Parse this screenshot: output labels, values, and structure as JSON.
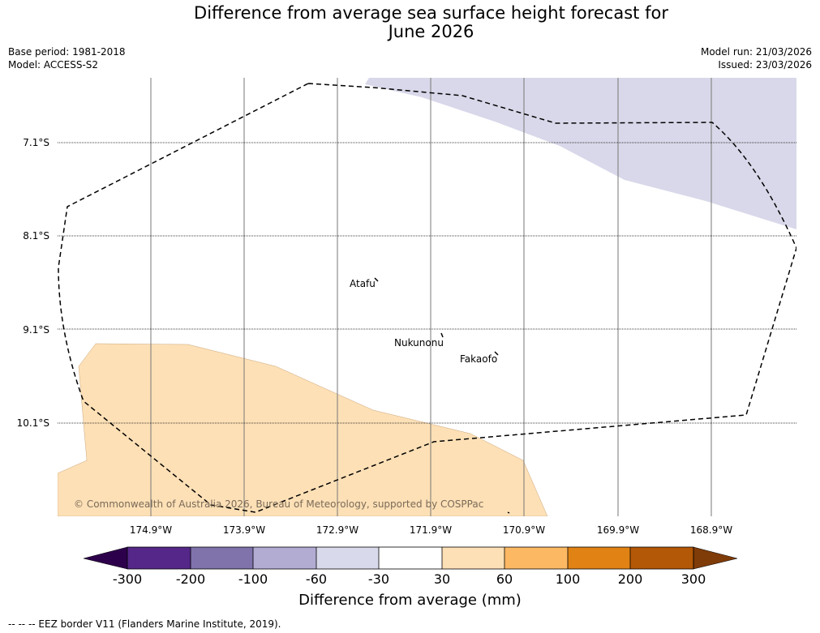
{
  "header": {
    "title_line1": "Difference from average sea surface height forecast for",
    "title_line2": "June 2026",
    "base_period": "Base period: 1981-2018",
    "model": "Model: ACCESS-S2",
    "model_run": "Model run: 21/03/2026",
    "issued": "Issued: 23/03/2026"
  },
  "map": {
    "lat_labels": [
      "7.1°S",
      "8.1°S",
      "9.1°S",
      "10.1°S"
    ],
    "lon_labels": [
      "174.9°W",
      "173.9°W",
      "172.9°W",
      "171.9°W",
      "170.9°W",
      "169.9°W",
      "168.9°W"
    ],
    "places": [
      "Atafu",
      "Nukunonu",
      "Fakaofo"
    ],
    "copyright": "© Commonwealth of Australia 2026, Bureau of Meteorology, supported by COSPPac",
    "colors": {
      "negative_area": "#d8d8ea",
      "positive_area": "#fde0b6"
    }
  },
  "colorbar": {
    "title": "Difference from average (mm)",
    "ticks": [
      "-300",
      "-200",
      "-100",
      "-60",
      "-30",
      "30",
      "60",
      "100",
      "200",
      "300"
    ],
    "colors": [
      "#2d004b",
      "#542788",
      "#8073ac",
      "#b2abd2",
      "#d8daeb",
      "#ffffff",
      "#fee0b6",
      "#fdb863",
      "#e08214",
      "#b35806",
      "#7f3b08"
    ]
  },
  "footnote": "--  --  -- EEZ border V11 (Flanders Marine Institute, 2019)."
}
